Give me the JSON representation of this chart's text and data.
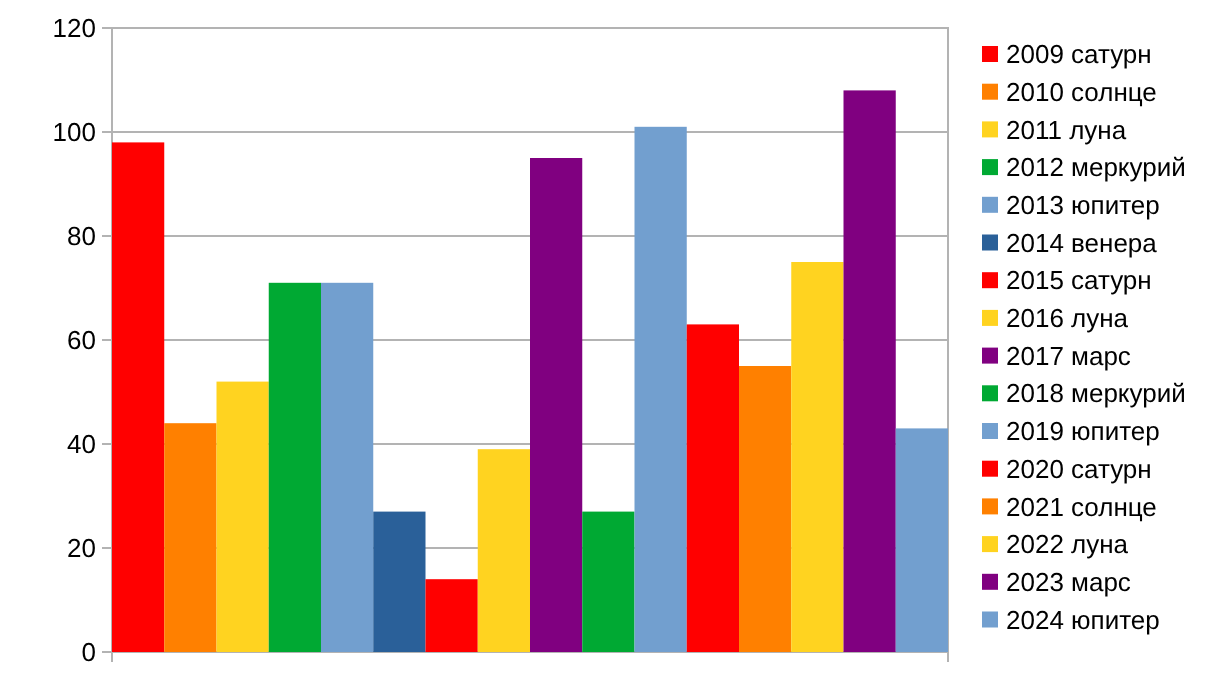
{
  "chart_data": {
    "type": "bar",
    "categories": [
      null
    ],
    "ylim": [
      0,
      120
    ],
    "yticks": [
      0,
      20,
      40,
      60,
      80,
      100,
      120
    ],
    "grid": "y",
    "legend": "right",
    "series": [
      {
        "name": "2009 сатурн",
        "color": "#ff0000",
        "values": [
          98
        ]
      },
      {
        "name": "2010 солнце",
        "color": "#ff8000",
        "values": [
          44
        ]
      },
      {
        "name": "2011 луна",
        "color": "#ffd320",
        "values": [
          52
        ]
      },
      {
        "name": "2012 меркурий",
        "color": "#00a933",
        "values": [
          71
        ]
      },
      {
        "name": "2013 юпитер",
        "color": "#729fcf",
        "values": [
          71
        ]
      },
      {
        "name": "2014 венера",
        "color": "#2a6099",
        "values": [
          27
        ]
      },
      {
        "name": "2015 сатурн",
        "color": "#ff0000",
        "values": [
          14
        ]
      },
      {
        "name": "2016 луна",
        "color": "#ffd320",
        "values": [
          39
        ]
      },
      {
        "name": "2017 марс",
        "color": "#800080",
        "values": [
          95
        ]
      },
      {
        "name": "2018 меркурий",
        "color": "#00a933",
        "values": [
          27
        ]
      },
      {
        "name": "2019 юпитер",
        "color": "#729fcf",
        "values": [
          101
        ]
      },
      {
        "name": "2020 сатурн",
        "color": "#ff0000",
        "values": [
          63
        ]
      },
      {
        "name": "2021 солнце",
        "color": "#ff8000",
        "values": [
          55
        ]
      },
      {
        "name": "2022 луна",
        "color": "#ffd320",
        "values": [
          75
        ]
      },
      {
        "name": "2023 марс",
        "color": "#800080",
        "values": [
          108
        ]
      },
      {
        "name": "2024 юпитер",
        "color": "#729fcf",
        "values": [
          43
        ]
      }
    ]
  }
}
